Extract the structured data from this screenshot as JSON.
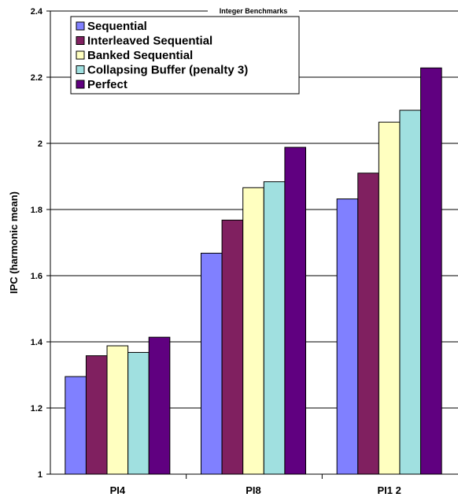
{
  "chart_data": {
    "type": "bar",
    "title": "Integer Benchmarks",
    "xlabel": "",
    "ylabel": "IPC (harmonic mean)",
    "ylim": [
      1,
      2.4
    ],
    "yticks": [
      "1",
      "1.2",
      "1.4",
      "1.6",
      "1.8",
      "2",
      "2.2",
      "2.4"
    ],
    "categories": [
      "PI4",
      "PI8",
      "PI1 2"
    ],
    "grid": true,
    "legend_position": "top-left",
    "series": [
      {
        "name": "Sequential",
        "color": "#8080ff",
        "values": [
          1.295,
          1.668,
          1.832
        ]
      },
      {
        "name": "Interleaved Sequential",
        "color": "#802060",
        "values": [
          1.358,
          1.768,
          1.91
        ]
      },
      {
        "name": "Banked Sequential",
        "color": "#ffffc0",
        "values": [
          1.388,
          1.866,
          2.064
        ]
      },
      {
        "name": "Collapsing Buffer (penalty 3)",
        "color": "#a0e0e0",
        "values": [
          1.368,
          1.884,
          2.1
        ]
      },
      {
        "name": "Perfect",
        "color": "#600080",
        "values": [
          1.414,
          1.988,
          2.228
        ]
      }
    ]
  }
}
